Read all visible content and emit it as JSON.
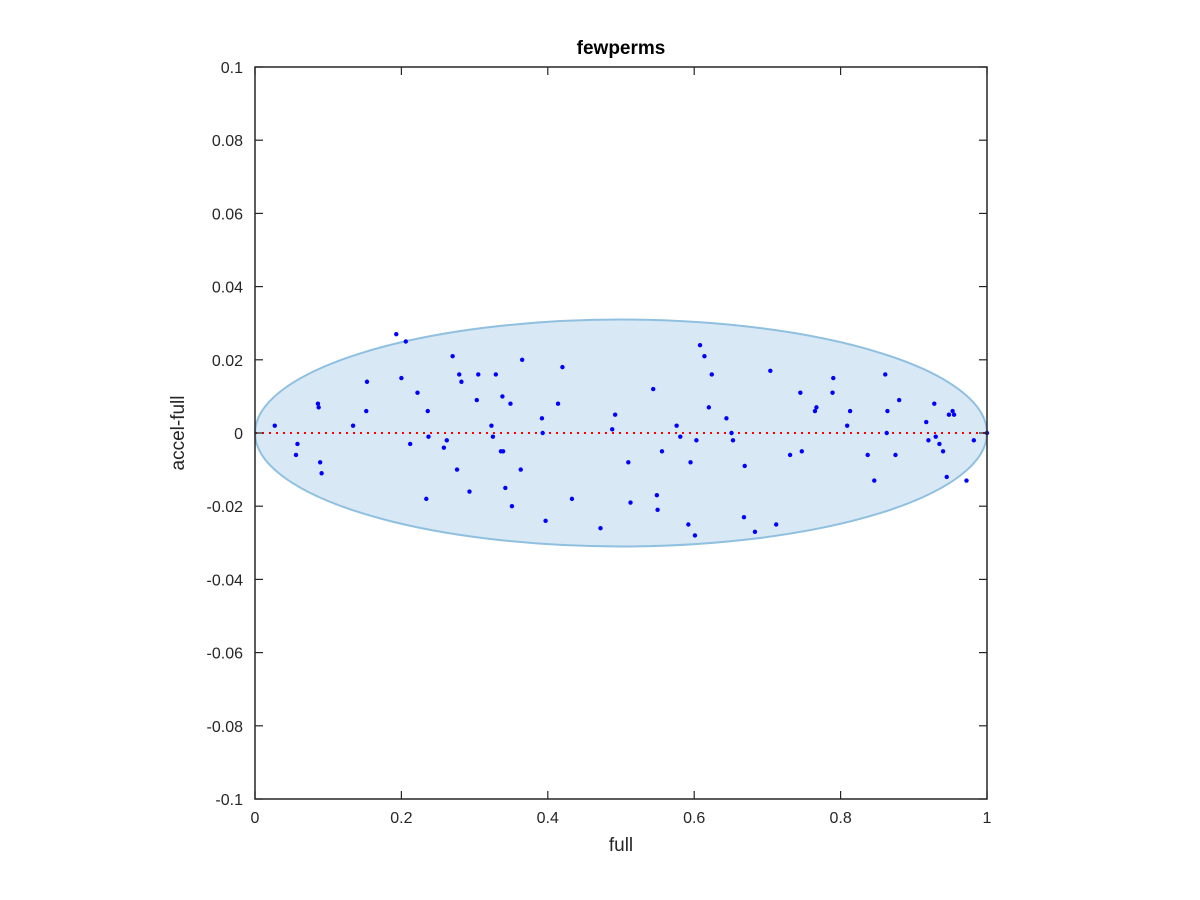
{
  "chart_data": {
    "type": "scatter",
    "title": "fewperms",
    "xlabel": "full",
    "ylabel": "accel-full",
    "xlim": [
      0,
      1
    ],
    "ylim": [
      -0.1,
      0.1
    ],
    "x_ticks": [
      "0",
      "0.2",
      "0.4",
      "0.6",
      "0.8",
      "1"
    ],
    "y_ticks": [
      "-0.1",
      "-0.08",
      "-0.06",
      "-0.04",
      "-0.02",
      "0",
      "0.02",
      "0.04",
      "0.06",
      "0.08",
      "0.1"
    ],
    "grid": false,
    "reference_line": {
      "y": 0,
      "style": "dotted",
      "color": "#ff0000"
    },
    "ellipse": {
      "center_x": 0.5,
      "center_y": 0,
      "radius_x": 0.5,
      "radius_y": 0.031,
      "fill": "#d8e8f4",
      "stroke": "#8fc0e0"
    },
    "marker_color": "#0000ff",
    "points": [
      [
        0.027,
        0.002
      ],
      [
        0.056,
        -0.006
      ],
      [
        0.058,
        -0.003
      ],
      [
        0.086,
        0.008
      ],
      [
        0.087,
        0.007
      ],
      [
        0.089,
        -0.008
      ],
      [
        0.091,
        -0.011
      ],
      [
        0.134,
        0.002
      ],
      [
        0.152,
        0.006
      ],
      [
        0.153,
        0.014
      ],
      [
        0.193,
        0.027
      ],
      [
        0.2,
        0.015
      ],
      [
        0.206,
        0.025
      ],
      [
        0.212,
        -0.003
      ],
      [
        0.222,
        0.011
      ],
      [
        0.234,
        -0.018
      ],
      [
        0.236,
        0.006
      ],
      [
        0.237,
        -0.001
      ],
      [
        0.258,
        -0.004
      ],
      [
        0.262,
        -0.002
      ],
      [
        0.27,
        0.021
      ],
      [
        0.276,
        -0.01
      ],
      [
        0.279,
        0.016
      ],
      [
        0.282,
        0.014
      ],
      [
        0.293,
        -0.016
      ],
      [
        0.303,
        0.009
      ],
      [
        0.305,
        0.016
      ],
      [
        0.323,
        0.002
      ],
      [
        0.325,
        -0.001
      ],
      [
        0.329,
        0.016
      ],
      [
        0.336,
        -0.005
      ],
      [
        0.338,
        0.01
      ],
      [
        0.339,
        -0.005
      ],
      [
        0.342,
        -0.015
      ],
      [
        0.349,
        0.008
      ],
      [
        0.351,
        -0.02
      ],
      [
        0.363,
        -0.01
      ],
      [
        0.365,
        0.02
      ],
      [
        0.392,
        0.004
      ],
      [
        0.393,
        0.0
      ],
      [
        0.397,
        -0.024
      ],
      [
        0.414,
        0.008
      ],
      [
        0.42,
        0.018
      ],
      [
        0.433,
        -0.018
      ],
      [
        0.472,
        -0.026
      ],
      [
        0.488,
        0.001
      ],
      [
        0.492,
        0.005
      ],
      [
        0.51,
        -0.008
      ],
      [
        0.513,
        -0.019
      ],
      [
        0.544,
        0.012
      ],
      [
        0.549,
        -0.017
      ],
      [
        0.55,
        -0.021
      ],
      [
        0.556,
        -0.005
      ],
      [
        0.576,
        0.002
      ],
      [
        0.581,
        -0.001
      ],
      [
        0.592,
        -0.025
      ],
      [
        0.595,
        -0.008
      ],
      [
        0.601,
        -0.028
      ],
      [
        0.603,
        -0.002
      ],
      [
        0.608,
        0.024
      ],
      [
        0.614,
        0.021
      ],
      [
        0.62,
        0.007
      ],
      [
        0.624,
        0.016
      ],
      [
        0.644,
        0.004
      ],
      [
        0.651,
        0.0
      ],
      [
        0.653,
        -0.002
      ],
      [
        0.668,
        -0.023
      ],
      [
        0.669,
        -0.009
      ],
      [
        0.683,
        -0.027
      ],
      [
        0.704,
        0.017
      ],
      [
        0.712,
        -0.025
      ],
      [
        0.731,
        -0.006
      ],
      [
        0.745,
        0.011
      ],
      [
        0.747,
        -0.005
      ],
      [
        0.765,
        0.006
      ],
      [
        0.767,
        0.007
      ],
      [
        0.789,
        0.011
      ],
      [
        0.79,
        0.015
      ],
      [
        0.809,
        0.002
      ],
      [
        0.813,
        0.006
      ],
      [
        0.837,
        -0.006
      ],
      [
        0.846,
        -0.013
      ],
      [
        0.861,
        0.016
      ],
      [
        0.863,
        0.0
      ],
      [
        0.864,
        0.006
      ],
      [
        0.875,
        -0.006
      ],
      [
        0.88,
        0.009
      ],
      [
        0.917,
        0.003
      ],
      [
        0.92,
        -0.002
      ],
      [
        0.928,
        0.008
      ],
      [
        0.93,
        -0.001
      ],
      [
        0.935,
        -0.003
      ],
      [
        0.94,
        -0.005
      ],
      [
        0.945,
        -0.012
      ],
      [
        0.948,
        0.005
      ],
      [
        0.953,
        0.006
      ],
      [
        0.955,
        0.005
      ],
      [
        0.972,
        -0.013
      ],
      [
        0.982,
        -0.002
      ],
      [
        1.0,
        0.0
      ]
    ]
  }
}
